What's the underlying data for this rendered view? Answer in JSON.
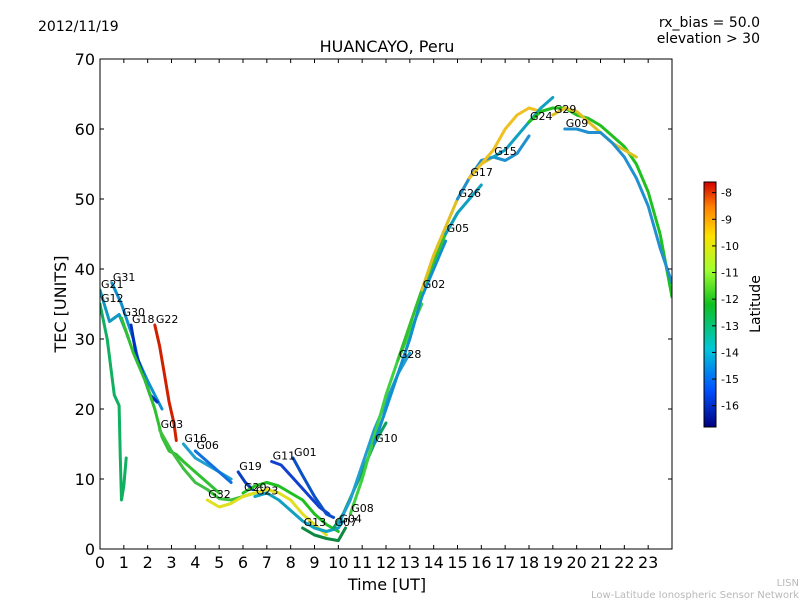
{
  "header": {
    "date": "2012/11/19",
    "rx_bias": "rx_bias = 50.0",
    "elevation": "elevation > 30"
  },
  "footer": {
    "line1": "LISN",
    "line2": "Low-Latitude Ionospheric Sensor Network"
  },
  "colors": {
    "gradient": [
      "#00007f",
      "#0050ff",
      "#00c8d8",
      "#10c020",
      "#a0ff30",
      "#ffe000",
      "#ff8000",
      "#d00000"
    ]
  },
  "chart_data": {
    "type": "line",
    "title": "HUANCAYO, Peru",
    "xlabel": "Time [UT]",
    "ylabel": "TEC [UNITS]",
    "xlim": [
      0,
      24
    ],
    "ylim": [
      0,
      70
    ],
    "x_ticks": [
      "0",
      "1",
      "2",
      "3",
      "4",
      "5",
      "6",
      "7",
      "8",
      "9",
      "10",
      "11",
      "12",
      "13",
      "14",
      "15",
      "16",
      "17",
      "18",
      "19",
      "20",
      "21",
      "22",
      "23"
    ],
    "y_ticks": [
      "0",
      "10",
      "20",
      "30",
      "40",
      "50",
      "60",
      "70"
    ],
    "colorbar": {
      "label": "Latitude",
      "range": [
        -16.8,
        -7.6
      ],
      "ticks": [
        "-8",
        "-9",
        "-10",
        "-11",
        "-12",
        "-13",
        "-14",
        "-15",
        "-16"
      ],
      "tick_values": [
        -8,
        -9,
        -10,
        -11,
        -12,
        -13,
        -14,
        -15,
        -16
      ]
    },
    "series": [
      {
        "name": "G12",
        "color": "#10b060",
        "points": [
          [
            0,
            35
          ],
          [
            0.3,
            30
          ],
          [
            0.6,
            22
          ],
          [
            0.8,
            20.5
          ],
          [
            0.85,
            13
          ],
          [
            0.9,
            7
          ],
          [
            1.0,
            9
          ],
          [
            1.1,
            13
          ]
        ]
      },
      {
        "name": "G21",
        "color": "#1098c0",
        "points": [
          [
            0,
            37
          ],
          [
            0.4,
            32.5
          ],
          [
            0.8,
            33.5
          ],
          [
            1.1,
            31
          ],
          [
            1.2,
            30
          ]
        ]
      },
      {
        "name": "G31",
        "color": "#0e90d0",
        "points": [
          [
            0.5,
            38
          ],
          [
            0.9,
            35
          ],
          [
            1.2,
            32
          ],
          [
            1.4,
            30
          ],
          [
            1.6,
            27
          ],
          [
            2.0,
            24
          ],
          [
            2.3,
            22
          ],
          [
            2.6,
            20
          ]
        ]
      },
      {
        "name": "G18",
        "color": "#0030c0",
        "points": [
          [
            1.3,
            32
          ],
          [
            1.5,
            28
          ],
          [
            1.8,
            25
          ],
          [
            2.1,
            22
          ],
          [
            2.4,
            21
          ]
        ]
      },
      {
        "name": "G22",
        "color": "#d02000",
        "points": [
          [
            2.3,
            32
          ],
          [
            2.5,
            29
          ],
          [
            2.7,
            25
          ],
          [
            2.9,
            21
          ],
          [
            3.1,
            18
          ],
          [
            3.2,
            15.5
          ]
        ]
      },
      {
        "name": "G30",
        "color": "#30c030",
        "points": [
          [
            0.9,
            33
          ],
          [
            1.4,
            28
          ],
          [
            1.9,
            24
          ],
          [
            2.3,
            20
          ],
          [
            2.6,
            16
          ],
          [
            2.9,
            14
          ],
          [
            3.2,
            13.5
          ],
          [
            3.5,
            12.5
          ],
          [
            4.0,
            11
          ],
          [
            4.5,
            9.5
          ],
          [
            5.0,
            8
          ]
        ]
      },
      {
        "name": "G16",
        "color": "#20a0d0",
        "points": [
          [
            3.5,
            15
          ],
          [
            4.0,
            13
          ],
          [
            4.5,
            12
          ],
          [
            5.0,
            11
          ],
          [
            5.5,
            10
          ]
        ]
      },
      {
        "name": "G06",
        "color": "#1070e0",
        "points": [
          [
            4.0,
            14
          ],
          [
            4.5,
            12.5
          ],
          [
            5.0,
            11
          ],
          [
            5.5,
            9.5
          ]
        ]
      },
      {
        "name": "G03",
        "color": "#40c040",
        "points": [
          [
            2.5,
            17
          ],
          [
            3.0,
            14
          ],
          [
            3.5,
            11.5
          ],
          [
            4.0,
            9.5
          ],
          [
            4.5,
            8.5
          ],
          [
            5.0,
            7.2
          ],
          [
            5.5,
            7
          ],
          [
            6.0,
            7.5
          ],
          [
            6.5,
            8
          ]
        ]
      },
      {
        "name": "G19",
        "color": "#0840c0",
        "points": [
          [
            5.8,
            11
          ],
          [
            6.1,
            9.5
          ],
          [
            6.4,
            8.5
          ]
        ]
      },
      {
        "name": "G32",
        "color": "#e0e020",
        "points": [
          [
            4.5,
            7
          ],
          [
            5.0,
            6
          ],
          [
            5.5,
            6.5
          ],
          [
            6.0,
            7.5
          ],
          [
            6.5,
            8
          ],
          [
            7.0,
            8.5
          ],
          [
            7.5,
            8
          ],
          [
            8.0,
            7
          ],
          [
            8.5,
            5
          ],
          [
            9.0,
            3.5
          ],
          [
            9.5,
            2
          ]
        ]
      },
      {
        "name": "G11",
        "color": "#1040d0",
        "points": [
          [
            7.2,
            12.5
          ],
          [
            7.6,
            12
          ],
          [
            8.0,
            10.5
          ],
          [
            8.4,
            9
          ],
          [
            8.8,
            7.5
          ],
          [
            9.2,
            6
          ],
          [
            9.6,
            5
          ]
        ]
      },
      {
        "name": "G01",
        "color": "#0a50c8",
        "points": [
          [
            8.1,
            13
          ],
          [
            8.5,
            10.5
          ],
          [
            9.0,
            7.5
          ],
          [
            9.5,
            5
          ],
          [
            9.8,
            4.5
          ]
        ]
      },
      {
        "name": "G20",
        "color": "#20c020",
        "points": [
          [
            6.0,
            8
          ],
          [
            6.5,
            9
          ],
          [
            7.0,
            9.5
          ],
          [
            7.5,
            9
          ],
          [
            8.0,
            8
          ],
          [
            8.5,
            7
          ],
          [
            9.0,
            5
          ],
          [
            9.5,
            3.5
          ],
          [
            10.0,
            2.5
          ]
        ]
      },
      {
        "name": "G23",
        "color": "#10a0c0",
        "points": [
          [
            6.5,
            7.5
          ],
          [
            7.0,
            8
          ],
          [
            7.5,
            7
          ],
          [
            8.0,
            5.5
          ],
          [
            8.5,
            4
          ],
          [
            9.0,
            3
          ],
          [
            9.5,
            2.5
          ],
          [
            10.0,
            3
          ],
          [
            10.2,
            4
          ]
        ]
      },
      {
        "name": "G13",
        "color": "#0c8840",
        "points": [
          [
            8.5,
            3
          ],
          [
            9.0,
            2
          ],
          [
            9.5,
            1.5
          ],
          [
            10.0,
            1.2
          ],
          [
            10.3,
            3
          ]
        ]
      },
      {
        "name": "G07",
        "color": "#10a060",
        "points": [
          [
            9.8,
            3
          ],
          [
            10.2,
            5
          ],
          [
            10.6,
            8
          ],
          [
            11.0,
            11
          ],
          [
            11.5,
            15
          ],
          [
            12.0,
            18
          ]
        ]
      },
      {
        "name": "G04",
        "color": "#20a0d0",
        "points": [
          [
            10.0,
            3.5
          ],
          [
            10.5,
            7
          ],
          [
            11.0,
            12
          ],
          [
            11.5,
            17
          ],
          [
            12.0,
            21
          ],
          [
            12.5,
            25
          ],
          [
            13.0,
            28
          ]
        ]
      },
      {
        "name": "G08",
        "color": "#40d040",
        "points": [
          [
            10.5,
            5
          ],
          [
            11.0,
            10
          ],
          [
            11.5,
            16
          ],
          [
            12.0,
            22
          ],
          [
            12.5,
            27
          ],
          [
            13.0,
            31
          ],
          [
            13.5,
            35
          ]
        ]
      },
      {
        "name": "G10",
        "color": "#1090d0",
        "points": [
          [
            11.5,
            15
          ],
          [
            12.0,
            20
          ],
          [
            12.5,
            25
          ],
          [
            13.0,
            30
          ],
          [
            13.5,
            36
          ],
          [
            14.0,
            40
          ],
          [
            14.5,
            44
          ]
        ]
      },
      {
        "name": "G28",
        "color": "#30c030",
        "points": [
          [
            12.5,
            27
          ],
          [
            13.0,
            32
          ],
          [
            13.5,
            37
          ],
          [
            14.0,
            41
          ],
          [
            14.5,
            45
          ],
          [
            15.0,
            48
          ]
        ]
      },
      {
        "name": "G02",
        "color": "#e0c020",
        "points": [
          [
            13.5,
            37
          ],
          [
            14.0,
            42
          ],
          [
            14.5,
            46
          ],
          [
            15.0,
            50
          ],
          [
            15.5,
            53
          ],
          [
            16.0,
            55
          ],
          [
            16.5,
            56
          ]
        ]
      },
      {
        "name": "G05",
        "color": "#10a0c0",
        "points": [
          [
            14.5,
            45
          ],
          [
            15.0,
            48
          ],
          [
            15.5,
            50
          ],
          [
            16.0,
            52
          ]
        ]
      },
      {
        "name": "G26",
        "color": "#2090d0",
        "points": [
          [
            15.0,
            50
          ],
          [
            15.5,
            53
          ],
          [
            16.0,
            55.5
          ],
          [
            16.5,
            56
          ],
          [
            17.0,
            55.5
          ],
          [
            17.5,
            56.5
          ],
          [
            18.0,
            59
          ]
        ]
      },
      {
        "name": "G17",
        "color": "#f0c020",
        "points": [
          [
            15.5,
            53
          ],
          [
            16.0,
            55
          ],
          [
            16.5,
            57
          ],
          [
            17.0,
            60
          ],
          [
            17.5,
            62
          ],
          [
            18.0,
            63
          ],
          [
            18.5,
            62.5
          ]
        ]
      },
      {
        "name": "G15",
        "color": "#10a0c0",
        "points": [
          [
            16.5,
            56
          ],
          [
            17.0,
            57
          ],
          [
            17.5,
            59
          ],
          [
            18.0,
            61
          ],
          [
            18.5,
            63
          ],
          [
            19.0,
            64.5
          ]
        ]
      },
      {
        "name": "G24",
        "color": "#20c020",
        "points": [
          [
            18.0,
            61
          ],
          [
            18.5,
            62.5
          ],
          [
            19.0,
            63
          ],
          [
            19.5,
            63
          ],
          [
            20.0,
            62
          ],
          [
            20.5,
            61.5
          ],
          [
            21.0,
            60.5
          ],
          [
            21.5,
            59
          ],
          [
            22.0,
            57.5
          ],
          [
            22.5,
            55
          ],
          [
            23.0,
            51
          ],
          [
            23.5,
            45
          ],
          [
            24.0,
            36
          ]
        ]
      },
      {
        "name": "G29",
        "color": "#e0c020",
        "points": [
          [
            19.0,
            62
          ],
          [
            19.5,
            63
          ],
          [
            20.0,
            62.5
          ],
          [
            20.5,
            61
          ],
          [
            21.0,
            59.5
          ],
          [
            21.5,
            58
          ],
          [
            22.0,
            57
          ],
          [
            22.5,
            56
          ]
        ]
      },
      {
        "name": "G09",
        "color": "#2090d0",
        "points": [
          [
            19.5,
            60
          ],
          [
            20.0,
            60
          ],
          [
            20.5,
            59.5
          ],
          [
            21.0,
            59.5
          ],
          [
            21.5,
            58
          ],
          [
            22.0,
            56
          ],
          [
            22.5,
            53
          ],
          [
            23.0,
            49
          ],
          [
            23.5,
            43
          ],
          [
            24.0,
            38
          ]
        ]
      }
    ]
  }
}
